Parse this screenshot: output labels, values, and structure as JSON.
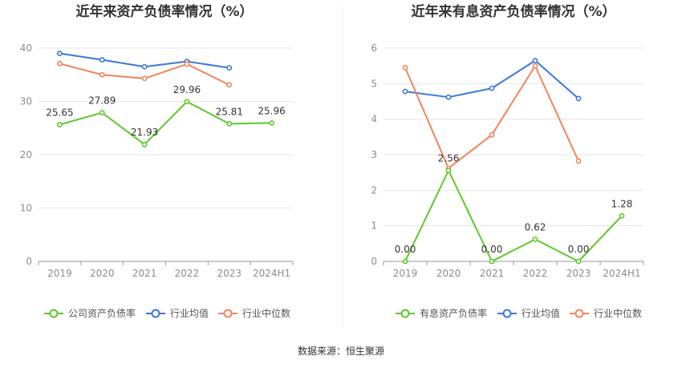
{
  "source": "数据来源：恒生聚源",
  "colors": {
    "company": "#5ec82a",
    "industry_avg": "#3a78d8",
    "industry_median": "#f2845c",
    "grid": "#e6e6e6",
    "axis": "#9a9a9a"
  },
  "chart_data": [
    {
      "type": "line",
      "title": "近年来资产负债率情况（%）",
      "categories": [
        "2019",
        "2020",
        "2021",
        "2022",
        "2023",
        "2024H1"
      ],
      "ylim": [
        0,
        40
      ],
      "yticks": [
        "0",
        "10",
        "20",
        "30",
        "40"
      ],
      "grid": true,
      "legend_position": "bottom",
      "series": [
        {
          "name": "公司资产负债率",
          "key": "company",
          "values": [
            25.65,
            27.89,
            21.93,
            29.96,
            25.81,
            25.96
          ],
          "labels": [
            "25.65",
            "27.89",
            "21.93",
            "29.96",
            "25.81",
            "25.96"
          ]
        },
        {
          "name": "行业均值",
          "key": "industry_avg",
          "values": [
            39.0,
            37.8,
            36.5,
            37.5,
            36.3,
            null
          ]
        },
        {
          "name": "行业中位数",
          "key": "industry_median",
          "values": [
            37.1,
            35.0,
            34.3,
            37.0,
            33.1,
            null
          ]
        }
      ]
    },
    {
      "type": "line",
      "title": "近年来有息资产负债率情况（%）",
      "categories": [
        "2019",
        "2020",
        "2021",
        "2022",
        "2023",
        "2024H1"
      ],
      "ylim": [
        0,
        6
      ],
      "yticks": [
        "0",
        "1",
        "2",
        "3",
        "4",
        "5",
        "6"
      ],
      "grid": true,
      "legend_position": "bottom",
      "series": [
        {
          "name": "有息资产负债率",
          "key": "company",
          "values": [
            0.0,
            2.56,
            0.0,
            0.62,
            0.0,
            1.28
          ],
          "labels": [
            "0.00",
            "2.56",
            "0.00",
            "0.62",
            "0.00",
            "1.28"
          ]
        },
        {
          "name": "行业均值",
          "key": "industry_avg",
          "values": [
            4.78,
            4.62,
            4.87,
            5.65,
            4.58,
            null
          ]
        },
        {
          "name": "行业中位数",
          "key": "industry_median",
          "values": [
            5.45,
            2.62,
            3.56,
            5.5,
            2.82,
            null
          ]
        }
      ]
    }
  ]
}
